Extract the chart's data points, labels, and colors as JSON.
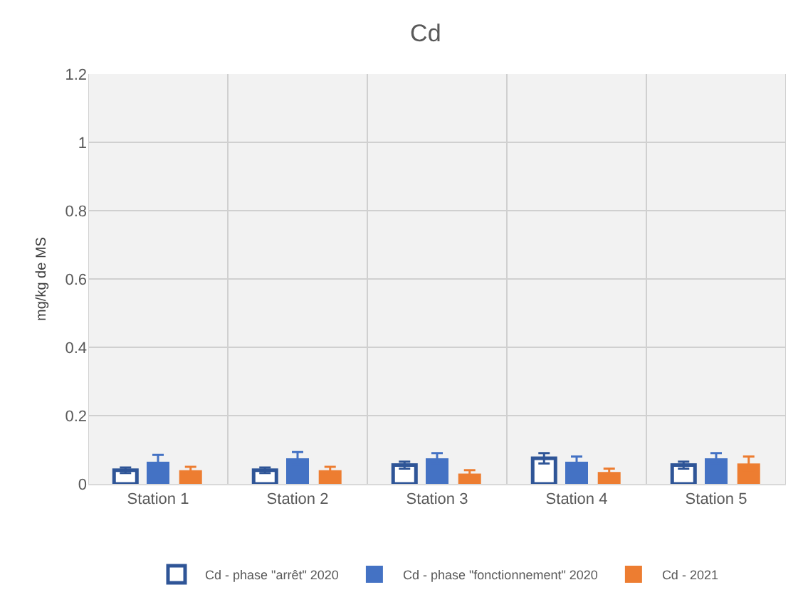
{
  "chart_data": {
    "type": "bar",
    "title": "Cd",
    "ylabel": "mg/kg de MS",
    "categories": [
      "Station 1",
      "Station 2",
      "Station 3",
      "Station 4",
      "Station 5"
    ],
    "series": [
      {
        "name": "Cd - phase \"arrêt\" 2020",
        "color": "#ffffff",
        "values": [
          0.04,
          0.04,
          0.055,
          0.075,
          0.055
        ],
        "errors": [
          0.008,
          0.008,
          0.01,
          0.015,
          0.01
        ]
      },
      {
        "name": "Cd - phase \"fonctionnement\" 2020",
        "color": "#4472c4",
        "values": [
          0.065,
          0.075,
          0.075,
          0.065,
          0.075
        ],
        "errors": [
          0.02,
          0.018,
          0.015,
          0.015,
          0.015
        ]
      },
      {
        "name": "Cd - 2021",
        "color": "#ed7d31",
        "values": [
          0.04,
          0.04,
          0.03,
          0.035,
          0.06
        ],
        "errors": [
          0.01,
          0.01,
          0.01,
          0.01,
          0.02
        ]
      }
    ],
    "ylim": [
      0,
      1.2
    ],
    "yticks": [
      0,
      0.2,
      0.4,
      0.6,
      0.8,
      1,
      1.2
    ],
    "grid": true,
    "legend": "bottom"
  }
}
